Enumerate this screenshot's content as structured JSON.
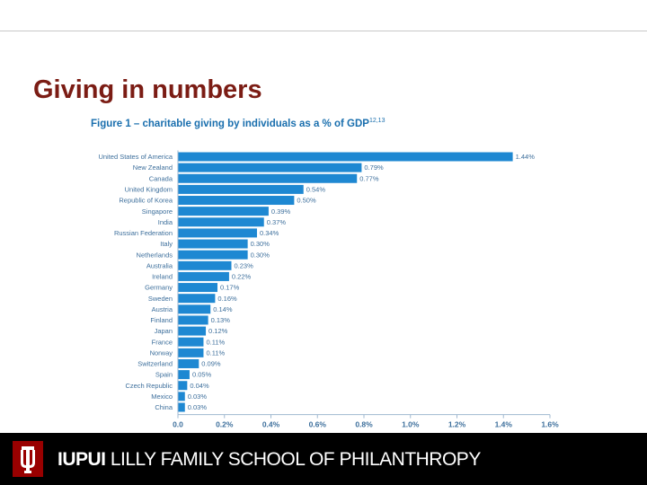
{
  "slide": {
    "title": "Giving in numbers"
  },
  "figure": {
    "title": "Figure 1 – charitable giving by individuals as a % of GDP",
    "footnote_marker": "12,13"
  },
  "footer": {
    "brand": "IUPUI",
    "school": "LILLY FAMILY SCHOOL OF PHILANTHROPY",
    "logo_icon": "iu-trident-logo-icon",
    "background": "#000000",
    "logo_color": "#990000"
  },
  "colors": {
    "bar": "#1e88d2",
    "title": "#7b1c14",
    "figure_title": "#1a6fae"
  },
  "chart_data": {
    "type": "bar",
    "orientation": "horizontal",
    "categories": [
      "United States of America",
      "New Zealand",
      "Canada",
      "United Kingdom",
      "Republic of Korea",
      "Singapore",
      "India",
      "Russian Federation",
      "Italy",
      "Netherlands",
      "Australia",
      "Ireland",
      "Germany",
      "Sweden",
      "Austria",
      "Finland",
      "Japan",
      "France",
      "Norway",
      "Switzerland",
      "Spain",
      "Czech Republic",
      "Mexico",
      "China"
    ],
    "values": [
      1.44,
      0.79,
      0.77,
      0.54,
      0.5,
      0.39,
      0.37,
      0.34,
      0.3,
      0.3,
      0.23,
      0.22,
      0.17,
      0.16,
      0.14,
      0.13,
      0.12,
      0.11,
      0.11,
      0.09,
      0.05,
      0.04,
      0.03,
      0.03
    ],
    "value_labels": [
      "1.44%",
      "0.79%",
      "0.77%",
      "0.54%",
      "0.50%",
      "0.39%",
      "0.37%",
      "0.34%",
      "0.30%",
      "0.30%",
      "0.23%",
      "0.22%",
      "0.17%",
      "0.16%",
      "0.14%",
      "0.13%",
      "0.12%",
      "0.11%",
      "0.11%",
      "0.09%",
      "0.05%",
      "0.04%",
      "0.03%",
      "0.03%"
    ],
    "x_ticks": [
      "0.0",
      "0.2%",
      "0.4%",
      "0.6%",
      "0.8%",
      "1.0%",
      "1.2%",
      "1.4%",
      "1.6%"
    ],
    "xlim": [
      0,
      1.6
    ],
    "grid": false,
    "legend": "none"
  }
}
